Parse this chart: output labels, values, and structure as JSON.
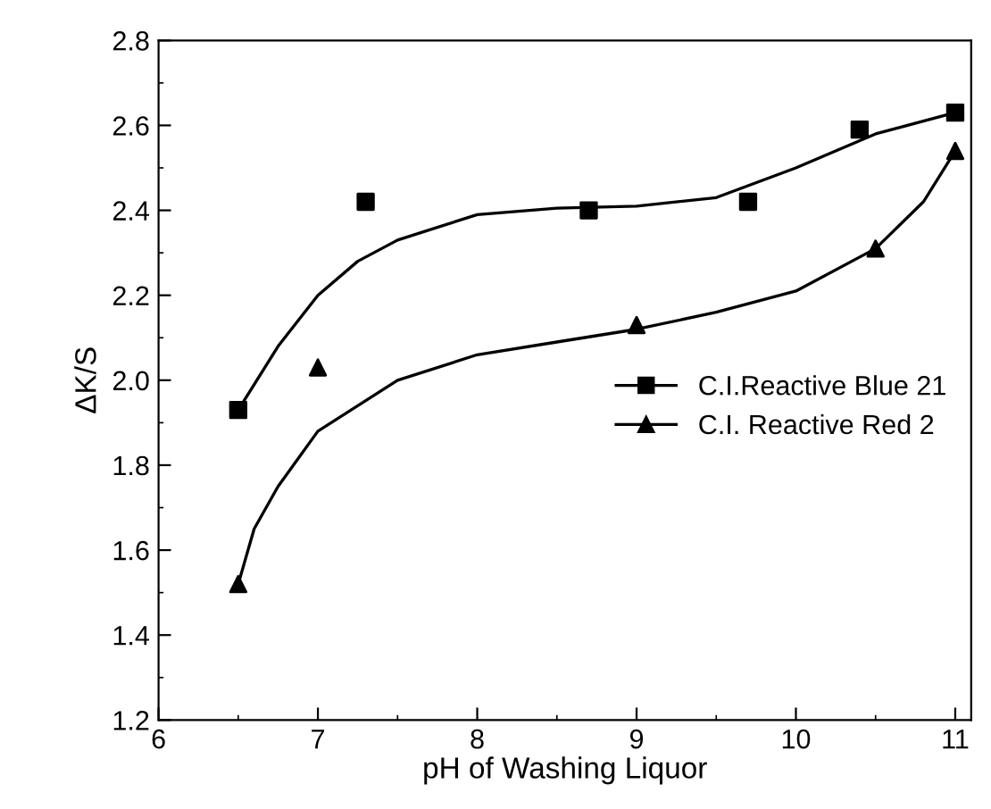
{
  "chart_data": {
    "type": "scatter",
    "xlabel": "pH of Washing Liquor",
    "ylabel": "ΔK/S",
    "xlim": [
      6,
      11.1
    ],
    "xticks": [
      6,
      7,
      8,
      9,
      10,
      11
    ],
    "ylim": [
      1.2,
      2.8
    ],
    "yticks": [
      1.2,
      1.4,
      1.6,
      1.8,
      {
        "value": 2,
        "label": "2.0"
      },
      2.2,
      2.4,
      2.6,
      2.8
    ],
    "legend": "right",
    "grid": false,
    "series": [
      {
        "name": "C.I.Reactive Blue 21",
        "marker": "square",
        "color": "#000000",
        "x": [
          6.5,
          7.3,
          8.7,
          9.7,
          10.4,
          11
        ],
        "values": [
          1.93,
          2.42,
          2.4,
          2.42,
          2.59,
          2.63
        ]
      },
      {
        "name": "C.I. Reactive Red 2",
        "marker": "triangle",
        "color": "#000000",
        "x": [
          6.5,
          7,
          9,
          10.5,
          11
        ],
        "values": [
          1.52,
          2.03,
          2.13,
          2.31,
          2.54
        ]
      },
      {
        "type": "line",
        "marker": "none",
        "color": "#000000",
        "x": [
          6.5,
          6.75,
          7,
          7.25,
          7.5,
          8,
          8.5,
          9,
          9.5,
          10,
          10.5,
          11
        ],
        "values": [
          1.93,
          2.08,
          2.2,
          2.28,
          2.33,
          2.39,
          2.405,
          2.41,
          2.43,
          2.5,
          2.58,
          2.63
        ]
      },
      {
        "type": "line",
        "marker": "none",
        "color": "#000000",
        "x": [
          6.5,
          6.6,
          6.75,
          7,
          7.5,
          8,
          8.5,
          9,
          9.5,
          10,
          10.5,
          10.8,
          11
        ],
        "values": [
          1.52,
          1.65,
          1.75,
          1.88,
          2.0,
          2.06,
          2.09,
          2.12,
          2.16,
          2.21,
          2.31,
          2.42,
          2.54
        ]
      }
    ]
  }
}
